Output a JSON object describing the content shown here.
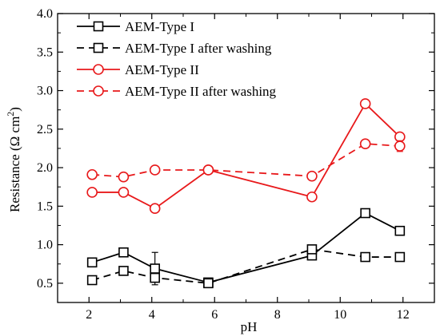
{
  "chart_data": {
    "type": "line",
    "xlabel": "pH",
    "ylabel_main": "Resistance (Ω cm",
    "ylabel_sup": "2",
    "ylabel_close": ")",
    "xlim": [
      1,
      13
    ],
    "ylim": [
      0.25,
      4.0
    ],
    "xticks": [
      2,
      4,
      6,
      8,
      10,
      12
    ],
    "yticks": [
      0.5,
      1.0,
      1.5,
      2.0,
      2.5,
      3.0,
      3.5,
      4.0
    ],
    "ytick_labels": [
      "0.5",
      "1.0",
      "1.5",
      "2.0",
      "2.5",
      "3.0",
      "3.5",
      "4.0"
    ],
    "legend_position": "top-left",
    "series": [
      {
        "name": "AEM-Type I",
        "color": "#000000",
        "marker": "square",
        "dashed": false,
        "x": [
          2.1,
          3.1,
          4.1,
          5.8,
          9.1,
          10.8,
          11.9
        ],
        "y": [
          0.77,
          0.9,
          0.69,
          0.51,
          0.86,
          1.41,
          1.18
        ],
        "err": [
          0.03,
          0.03,
          0.21,
          0.05,
          0.03,
          0.03,
          0.03
        ]
      },
      {
        "name": "AEM-Type I after washing",
        "color": "#000000",
        "marker": "square",
        "dashed": true,
        "x": [
          2.1,
          3.1,
          4.1,
          5.8,
          9.1,
          10.8,
          11.9
        ],
        "y": [
          0.54,
          0.66,
          0.57,
          0.5,
          0.94,
          0.84,
          0.84
        ],
        "err": [
          0.03,
          0.03,
          0.05,
          0.03,
          0.03,
          0.03,
          0.03
        ]
      },
      {
        "name": "AEM-Type II",
        "color": "#e8191b",
        "marker": "circle",
        "dashed": false,
        "x": [
          2.1,
          3.1,
          4.1,
          5.8,
          9.1,
          10.8,
          11.9
        ],
        "y": [
          1.68,
          1.68,
          1.47,
          1.97,
          1.62,
          2.83,
          2.4
        ],
        "err": [
          0.02,
          0.02,
          0.02,
          0.02,
          0.02,
          0.04,
          0.03
        ]
      },
      {
        "name": "AEM-Type II after washing",
        "color": "#e8191b",
        "marker": "circle",
        "dashed": true,
        "x": [
          2.1,
          3.1,
          4.1,
          5.8,
          9.1,
          10.8,
          11.9
        ],
        "y": [
          1.91,
          1.88,
          1.97,
          1.97,
          1.89,
          2.31,
          2.28
        ],
        "err": [
          0.02,
          0.02,
          0.02,
          0.02,
          0.02,
          0.03,
          0.07
        ]
      }
    ]
  }
}
